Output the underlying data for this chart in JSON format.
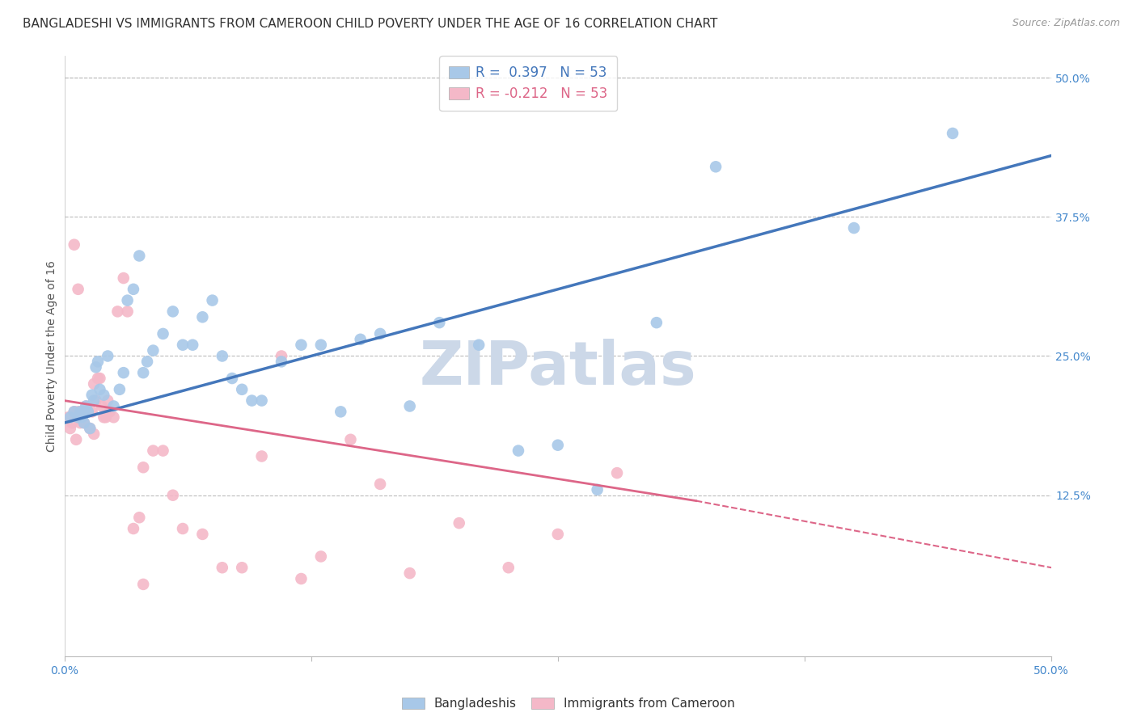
{
  "title": "BANGLADESHI VS IMMIGRANTS FROM CAMEROON CHILD POVERTY UNDER THE AGE OF 16 CORRELATION CHART",
  "source": "Source: ZipAtlas.com",
  "ylabel": "Child Poverty Under the Age of 16",
  "xlim": [
    0.0,
    0.5
  ],
  "ylim": [
    -0.02,
    0.52
  ],
  "xticks": [
    0.0,
    0.125,
    0.25,
    0.375,
    0.5
  ],
  "xtick_labels": [
    "0.0%",
    "",
    "",
    "",
    "50.0%"
  ],
  "yticks_right": [
    0.5,
    0.375,
    0.25,
    0.125,
    0.0
  ],
  "ytick_labels_right": [
    "50.0%",
    "37.5%",
    "25.0%",
    "12.5%",
    ""
  ],
  "blue_color": "#a8c8e8",
  "blue_color_dark": "#4477bb",
  "pink_color": "#f4b8c8",
  "pink_color_dark": "#dd6688",
  "R_blue": 0.397,
  "N_blue": 53,
  "R_pink": -0.212,
  "N_pink": 53,
  "blue_scatter_x": [
    0.003,
    0.005,
    0.007,
    0.008,
    0.009,
    0.01,
    0.01,
    0.011,
    0.012,
    0.013,
    0.014,
    0.015,
    0.016,
    0.017,
    0.018,
    0.02,
    0.022,
    0.025,
    0.028,
    0.03,
    0.032,
    0.035,
    0.038,
    0.04,
    0.042,
    0.045,
    0.05,
    0.055,
    0.06,
    0.065,
    0.07,
    0.075,
    0.08,
    0.085,
    0.09,
    0.095,
    0.1,
    0.11,
    0.12,
    0.13,
    0.14,
    0.15,
    0.16,
    0.175,
    0.19,
    0.21,
    0.23,
    0.25,
    0.27,
    0.3,
    0.33,
    0.4,
    0.45
  ],
  "blue_scatter_y": [
    0.195,
    0.2,
    0.195,
    0.2,
    0.195,
    0.19,
    0.2,
    0.205,
    0.2,
    0.185,
    0.215,
    0.21,
    0.24,
    0.245,
    0.22,
    0.215,
    0.25,
    0.205,
    0.22,
    0.235,
    0.3,
    0.31,
    0.34,
    0.235,
    0.245,
    0.255,
    0.27,
    0.29,
    0.26,
    0.26,
    0.285,
    0.3,
    0.25,
    0.23,
    0.22,
    0.21,
    0.21,
    0.245,
    0.26,
    0.26,
    0.2,
    0.265,
    0.27,
    0.205,
    0.28,
    0.26,
    0.165,
    0.17,
    0.13,
    0.28,
    0.42,
    0.365,
    0.45
  ],
  "pink_scatter_x": [
    0.002,
    0.003,
    0.004,
    0.005,
    0.006,
    0.007,
    0.007,
    0.008,
    0.009,
    0.01,
    0.01,
    0.011,
    0.012,
    0.013,
    0.014,
    0.015,
    0.015,
    0.016,
    0.017,
    0.018,
    0.019,
    0.02,
    0.021,
    0.022,
    0.023,
    0.025,
    0.027,
    0.03,
    0.032,
    0.035,
    0.038,
    0.04,
    0.045,
    0.05,
    0.055,
    0.06,
    0.07,
    0.08,
    0.09,
    0.1,
    0.11,
    0.12,
    0.13,
    0.145,
    0.16,
    0.175,
    0.2,
    0.225,
    0.25,
    0.28,
    0.005,
    0.007,
    0.04
  ],
  "pink_scatter_y": [
    0.195,
    0.185,
    0.19,
    0.2,
    0.175,
    0.2,
    0.195,
    0.19,
    0.2,
    0.19,
    0.2,
    0.205,
    0.2,
    0.185,
    0.2,
    0.18,
    0.225,
    0.21,
    0.23,
    0.23,
    0.205,
    0.195,
    0.195,
    0.21,
    0.2,
    0.195,
    0.29,
    0.32,
    0.29,
    0.095,
    0.105,
    0.15,
    0.165,
    0.165,
    0.125,
    0.095,
    0.09,
    0.06,
    0.06,
    0.16,
    0.25,
    0.05,
    0.07,
    0.175,
    0.135,
    0.055,
    0.1,
    0.06,
    0.09,
    0.145,
    0.35,
    0.31,
    0.045
  ],
  "blue_line_x": [
    0.0,
    0.5
  ],
  "blue_line_y": [
    0.19,
    0.43
  ],
  "pink_line_x_solid_start": 0.0,
  "pink_line_x_solid_end": 0.32,
  "pink_line_y_solid_start": 0.21,
  "pink_line_y_solid_end": 0.12,
  "pink_line_x_dashed_start": 0.32,
  "pink_line_x_dashed_end": 0.5,
  "pink_line_y_dashed_start": 0.12,
  "pink_line_y_dashed_end": 0.06,
  "watermark": "ZIPatlas",
  "watermark_color": "#ccd8e8",
  "background_color": "#ffffff",
  "grid_color": "#bbbbbb",
  "title_fontsize": 11,
  "axis_label_fontsize": 10,
  "tick_fontsize": 10,
  "legend_label_blue": "Bangladeshis",
  "legend_label_pink": "Immigrants from Cameroon"
}
